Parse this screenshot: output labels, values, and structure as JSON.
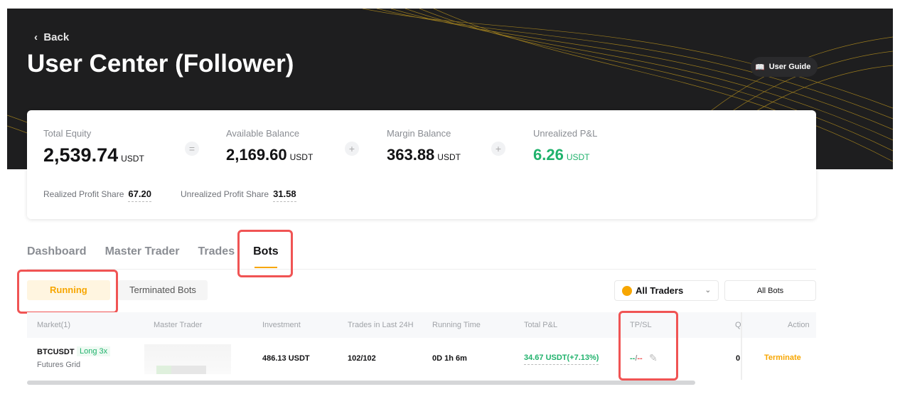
{
  "header": {
    "back_label": "Back",
    "title": "User Center (Follower)",
    "guide_label": "User Guide"
  },
  "summary": {
    "total_equity": {
      "label": "Total Equity",
      "value": "2,539.74",
      "unit": "USDT"
    },
    "available_balance": {
      "label": "Available Balance",
      "value": "2,169.60",
      "unit": "USDT"
    },
    "margin_balance": {
      "label": "Margin Balance",
      "value": "363.88",
      "unit": "USDT"
    },
    "unrealized_pnl": {
      "label": "Unrealized P&L",
      "value": "6.26",
      "unit": "USDT"
    },
    "op_equals": "=",
    "op_plus": "+",
    "realized_profit_share": {
      "label": "Realized Profit Share",
      "value": "67.20"
    },
    "unrealized_profit_share": {
      "label": "Unrealized Profit Share",
      "value": "31.58"
    }
  },
  "tabs": [
    "Dashboard",
    "Master Trader",
    "Trades",
    "Bots"
  ],
  "subtabs": [
    "Running",
    "Terminated Bots"
  ],
  "filters": {
    "traders": "All Traders",
    "bots": "All Bots"
  },
  "table": {
    "headers": [
      "Market(1)",
      "Master Trader",
      "Investment",
      "Trades in Last 24H",
      "Running Time",
      "Total P&L",
      "TP/SL",
      "Q",
      "Action"
    ],
    "rows": [
      {
        "symbol": "BTCUSDT",
        "tag": "Long 3x",
        "type": "Futures Grid",
        "investment": "486.13 USDT",
        "trades": "102/102",
        "running_time": "0D 1h 6m",
        "pnl": "34.67 USDT(+7.13%)",
        "tp": "--",
        "sep": "/",
        "sl": "--",
        "q": "0",
        "action": "Terminate"
      }
    ]
  },
  "colors": {
    "accent": "#f7a600",
    "profit": "#20b26c",
    "loss": "#f05454",
    "highlight": "#f05454"
  }
}
